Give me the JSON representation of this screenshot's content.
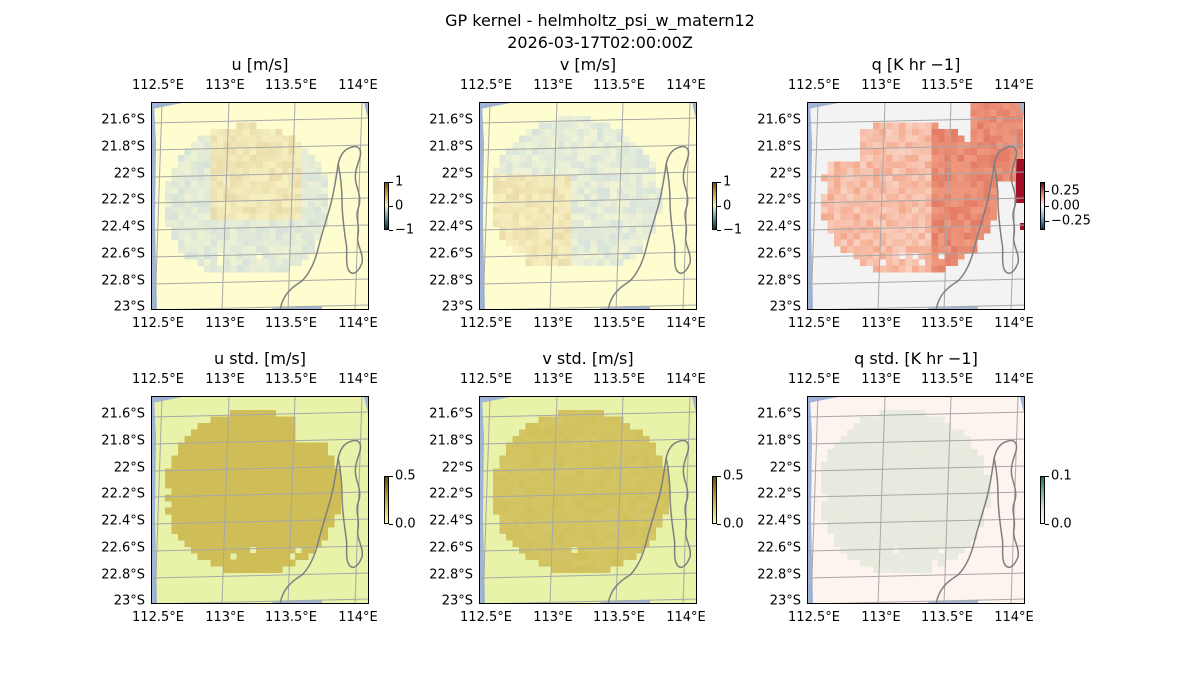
{
  "figure": {
    "title_line1": "GP kernel - helmholtz_psi_w_matern12",
    "title_line2": "2026-03-17T02:00:00Z"
  },
  "axes": {
    "lon_ticks": [
      "112.5°E",
      "113°E",
      "113.5°E",
      "114°E"
    ],
    "lat_ticks": [
      "21.6°S",
      "21.8°S",
      "22°S",
      "22.2°S",
      "22.4°S",
      "22.6°S",
      "22.8°S",
      "23°S"
    ]
  },
  "panels": [
    {
      "title": "u [m/s]",
      "cbar_ticks": [
        "1",
        "0",
        "−1"
      ],
      "colors": {
        "bg": "#fefdd0",
        "land": "#9fb4d6",
        "patch_a": "#eadcaa",
        "patch_b": "#d6e2da"
      }
    },
    {
      "title": "v [m/s]",
      "cbar_ticks": [
        "1",
        "0",
        "−1"
      ],
      "colors": {
        "bg": "#fefdd0",
        "land": "#9fb4d6",
        "patch_a": "#d7e3dc",
        "patch_b": "#ecdcaa"
      }
    },
    {
      "title": "q [K hr −1]",
      "cbar_ticks": [
        "0.25",
        "0.00",
        "−0.25"
      ],
      "colors": {
        "bg": "#f3f3f3",
        "land": "#9fb4d6",
        "patch_a": "#f4a98d",
        "patch_b": "#e37a64"
      }
    },
    {
      "title": "u std. [m/s]",
      "cbar_ticks": [
        "0.5",
        "0.0"
      ],
      "colors": {
        "bg": "#e8f2a9",
        "land": "#9fb4d6",
        "patch_a": "#cfbd57",
        "patch_b": "#cfbd57"
      }
    },
    {
      "title": "v std. [m/s]",
      "cbar_ticks": [
        "0.5",
        "0.0"
      ],
      "colors": {
        "bg": "#e8f2a9",
        "land": "#9fb4d6",
        "patch_a": "#d1c15a",
        "patch_b": "#d6c870"
      }
    },
    {
      "title": "q std. [K hr −1]",
      "cbar_ticks": [
        "0.1",
        "0.0"
      ],
      "colors": {
        "bg": "#fdf3ef",
        "land": "#9fb4d6",
        "patch_a": "#e9ebe0",
        "patch_b": "#e6e9dc"
      }
    }
  ],
  "chart_data": {
    "type": "heatmap",
    "projection": "map",
    "lon_range": [
      112.5,
      114.2
    ],
    "lat_range": [
      -23.0,
      -21.5
    ],
    "panels": [
      {
        "field": "u",
        "units": "m/s",
        "colorbar_range": [
          -1,
          1
        ]
      },
      {
        "field": "v",
        "units": "m/s",
        "colorbar_range": [
          -1,
          1
        ]
      },
      {
        "field": "q",
        "units": "K hr −1",
        "colorbar_range": [
          -0.25,
          0.25
        ]
      },
      {
        "field": "u std.",
        "units": "m/s",
        "colorbar_range": [
          0.0,
          0.5
        ]
      },
      {
        "field": "v std.",
        "units": "m/s",
        "colorbar_range": [
          0.0,
          0.5
        ]
      },
      {
        "field": "q std.",
        "units": "K hr −1",
        "colorbar_range": [
          0.0,
          0.1
        ]
      }
    ],
    "grid": true
  }
}
